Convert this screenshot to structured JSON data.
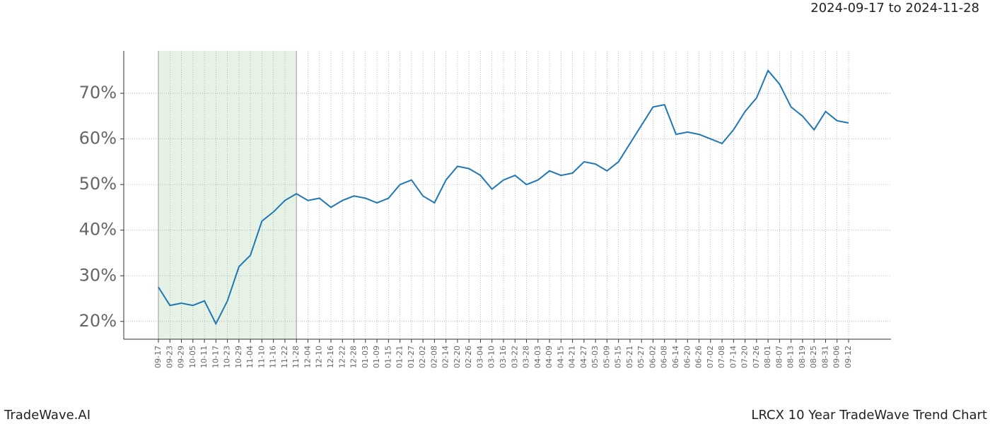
{
  "chart_data": {
    "type": "line",
    "title": "2024-09-17 to 2024-11-28",
    "footer_left": "TradeWave.AI",
    "footer_right": "LRCX 10 Year TradeWave Trend Chart",
    "categories": [
      "09-17",
      "09-23",
      "09-29",
      "10-05",
      "10-11",
      "10-17",
      "10-23",
      "10-29",
      "11-04",
      "11-10",
      "11-16",
      "11-22",
      "11-28",
      "12-04",
      "12-10",
      "12-16",
      "12-22",
      "12-28",
      "01-03",
      "01-09",
      "01-15",
      "01-21",
      "01-27",
      "02-02",
      "02-08",
      "02-14",
      "02-20",
      "02-26",
      "03-04",
      "03-10",
      "03-16",
      "03-22",
      "03-28",
      "04-03",
      "04-09",
      "04-15",
      "04-21",
      "04-27",
      "05-03",
      "05-09",
      "05-15",
      "05-21",
      "05-27",
      "06-02",
      "06-08",
      "06-14",
      "06-20",
      "06-26",
      "07-02",
      "07-08",
      "07-14",
      "07-20",
      "07-26",
      "08-01",
      "08-07",
      "08-13",
      "08-19",
      "08-25",
      "08-31",
      "09-06",
      "09-12"
    ],
    "values": [
      27.5,
      23.5,
      24,
      23.5,
      24.5,
      19.5,
      24.5,
      32,
      34.5,
      42,
      44,
      46.5,
      48,
      46.5,
      47,
      45,
      46.5,
      47.5,
      47,
      46,
      47,
      50,
      51,
      47.5,
      46,
      51,
      54,
      53.5,
      52,
      49,
      51,
      52,
      50,
      51,
      53,
      52,
      52.5,
      55,
      54.5,
      53,
      55,
      59,
      63,
      67,
      67.5,
      61,
      61.5,
      61,
      60,
      59,
      62,
      66,
      69,
      75,
      72,
      67,
      65,
      62,
      66,
      64,
      63.5
    ],
    "color": "#1f77b4",
    "highlight": {
      "start": "09-17",
      "end": "11-28",
      "color": "#e6f2e6"
    },
    "ylim": [
      16.1,
      79.3
    ],
    "yticks": [
      {
        "value": 20,
        "label": "20%"
      },
      {
        "value": 30,
        "label": "30%"
      },
      {
        "value": 40,
        "label": "40%"
      },
      {
        "value": 50,
        "label": "50%"
      },
      {
        "value": 60,
        "label": "60%"
      },
      {
        "value": 70,
        "label": "70%"
      }
    ],
    "grid": true
  }
}
